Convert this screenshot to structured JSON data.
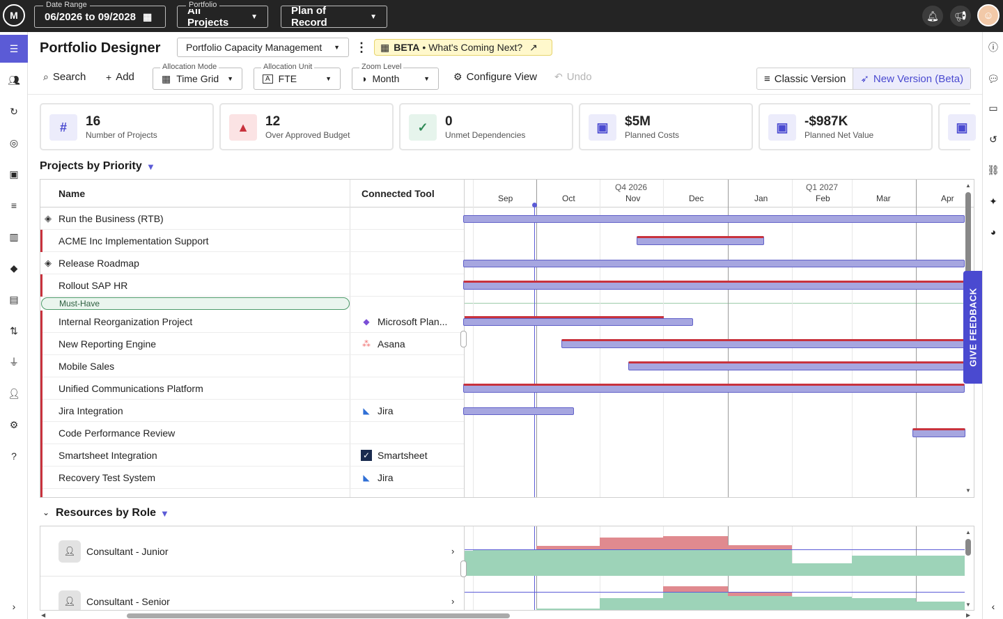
{
  "topbar": {
    "logo": "M",
    "date_range_label": "Date Range",
    "date_range_value": "06/2026 to 09/2028",
    "portfolio_label": "Portfolio",
    "portfolio_value": "All Projects",
    "plan_value": "Plan of Record"
  },
  "header": {
    "title": "Portfolio Designer",
    "view_select": "Portfolio Capacity Management",
    "beta_badge": "BETA",
    "beta_sep": "•",
    "beta_text": "What's Coming Next?"
  },
  "toolbar": {
    "search": "Search",
    "add": "Add",
    "allocation_mode_label": "Allocation Mode",
    "allocation_mode_value": "Time Grid",
    "allocation_unit_label": "Allocation Unit",
    "allocation_unit_value": "FTE",
    "zoom_label": "Zoom Level",
    "zoom_value": "Month",
    "configure": "Configure View",
    "undo": "Undo",
    "classic": "Classic Version",
    "new_version": "New Version (Beta)"
  },
  "metrics": [
    {
      "value": "16",
      "label": "Number of Projects",
      "icon": "hash-icon"
    },
    {
      "value": "12",
      "label": "Over Approved Budget",
      "icon": "warning-icon"
    },
    {
      "value": "0",
      "label": "Unmet Dependencies",
      "icon": "check-icon"
    },
    {
      "value": "$5M",
      "label": "Planned Costs",
      "icon": "money-icon"
    },
    {
      "value": "-$987K",
      "label": "Planned Net Value",
      "icon": "money-icon"
    }
  ],
  "projects": {
    "title": "Projects by Priority",
    "col_name": "Name",
    "col_tool": "Connected Tool",
    "must_have": "Must-Have",
    "rows": [
      {
        "name": "Run the Business (RTB)",
        "tool": ""
      },
      {
        "name": "ACME Inc Implementation Support",
        "tool": ""
      },
      {
        "name": "Release Roadmap",
        "tool": ""
      },
      {
        "name": "Rollout SAP HR",
        "tool": ""
      },
      {
        "name": "Internal Reorganization Project",
        "tool": "Microsoft Plan..."
      },
      {
        "name": "New Reporting Engine",
        "tool": "Asana"
      },
      {
        "name": "Mobile Sales",
        "tool": ""
      },
      {
        "name": "Unified Communications Platform",
        "tool": ""
      },
      {
        "name": "Jira Integration",
        "tool": "Jira"
      },
      {
        "name": "Code Performance Review",
        "tool": ""
      },
      {
        "name": "Smartsheet Integration",
        "tool": "Smartsheet"
      },
      {
        "name": "Recovery Test System",
        "tool": "Jira"
      }
    ]
  },
  "timeline": {
    "quarters": [
      "Q4 2026",
      "Q1 2027"
    ],
    "months": [
      "Sep",
      "Oct",
      "Nov",
      "Dec",
      "Jan",
      "Feb",
      "Mar",
      "Apr"
    ]
  },
  "resources": {
    "title": "Resources by Role",
    "rows": [
      {
        "name": "Consultant - Junior"
      },
      {
        "name": "Consultant - Senior"
      }
    ]
  },
  "feedback": "GIVE FEEDBACK"
}
